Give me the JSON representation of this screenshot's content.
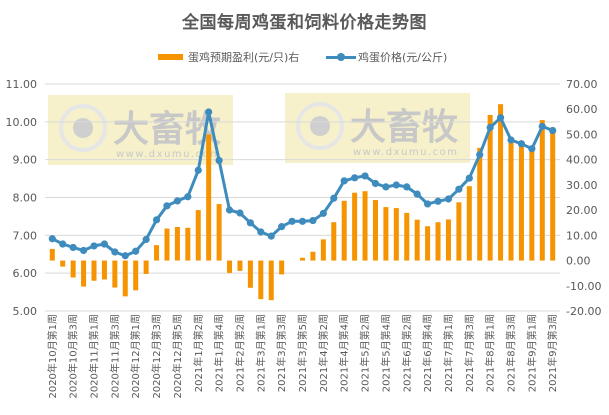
{
  "title": "全国每周鸡蛋和饲料价格走势图",
  "legend": {
    "bar_label": "蛋鸡预期盈利(元/只)右",
    "line_label": "鸡蛋价格(元/公斤)"
  },
  "colors": {
    "bar": "#f59300",
    "line": "#3e8cbe",
    "grid": "#d9d9d9",
    "watermark_bg": "#f5eec2",
    "watermark_text": "#c8c8c8"
  },
  "watermark": {
    "brand": "大畜牧",
    "url": "www.dxumu.com"
  },
  "chart_data": {
    "type": "bar+line",
    "title": "全国每周鸡蛋和饲料价格走势图",
    "xlabel": "",
    "ylabel_left": "鸡蛋价格(元/公斤)",
    "ylabel_right": "蛋鸡预期盈利(元/只)",
    "y_left_range": [
      5,
      11
    ],
    "y_left_ticks": [
      "11.00",
      "10.00",
      "9.00",
      "8.00",
      "7.00",
      "6.00",
      "5.00"
    ],
    "y_right_range": [
      -20,
      70
    ],
    "y_right_ticks": [
      "70.00",
      "60.00",
      "50.00",
      "40.00",
      "30.00",
      "20.00",
      "10.00",
      "0.00",
      "-10.00",
      "-20.00"
    ],
    "grid": true,
    "legend_position": "top",
    "x_tick_labels": [
      "2020年10月第1周",
      "2020年10月第3周",
      "2020年11月第1周",
      "2020年11月第3周",
      "2020年12月第1周",
      "2020年12月第3周",
      "2020年12月第5周",
      "2021年1月第2周",
      "2021年1月第4周",
      "2021年2月第2周",
      "2021年3月第1周",
      "2021年3月第3周",
      "2021年3月第5周",
      "2021年4月第2周",
      "2021年4月第4周",
      "2021年5月第2周",
      "2021年5月第4周",
      "2021年6月第2周",
      "2021年6月第4周",
      "2021年7月第1周",
      "2021年7月第3周",
      "2021年8月第1周",
      "2021年8月第3周",
      "2021年9月第1周",
      "2021年9月第3周"
    ],
    "x_label_every": 2,
    "series": [
      {
        "name": "蛋鸡预期盈利(元/只)右",
        "type": "bar",
        "axis": "right",
        "values": [
          4.6,
          -2.4,
          -6.7,
          -10.3,
          -8.0,
          -7.5,
          -10.7,
          -14.2,
          -11.8,
          -5.3,
          6.1,
          12.7,
          13.3,
          13.0,
          20.0,
          50.0,
          22.4,
          -4.9,
          -4.1,
          -10.8,
          -15.3,
          -15.7,
          -5.5,
          0.0,
          1.1,
          3.5,
          8.4,
          15.2,
          23.7,
          26.9,
          27.5,
          24.0,
          21.2,
          20.8,
          18.9,
          16.2,
          13.6,
          15.2,
          16.3,
          23.1,
          29.5,
          44.7,
          57.7,
          62.0,
          48.0,
          46.5,
          44.7,
          55.7,
          52.7
        ]
      },
      {
        "name": "鸡蛋价格(元/公斤)",
        "type": "line",
        "axis": "left",
        "values": [
          6.91,
          6.77,
          6.68,
          6.6,
          6.72,
          6.77,
          6.56,
          6.46,
          6.58,
          6.89,
          7.41,
          7.78,
          7.91,
          8.02,
          8.72,
          10.26,
          8.98,
          7.67,
          7.59,
          7.33,
          7.09,
          6.98,
          7.23,
          7.37,
          7.37,
          7.39,
          7.58,
          7.98,
          8.44,
          8.52,
          8.57,
          8.37,
          8.28,
          8.33,
          8.28,
          8.09,
          7.83,
          7.9,
          7.96,
          8.22,
          8.51,
          9.13,
          9.85,
          10.11,
          9.52,
          9.42,
          9.29,
          9.88,
          9.77
        ]
      }
    ]
  }
}
